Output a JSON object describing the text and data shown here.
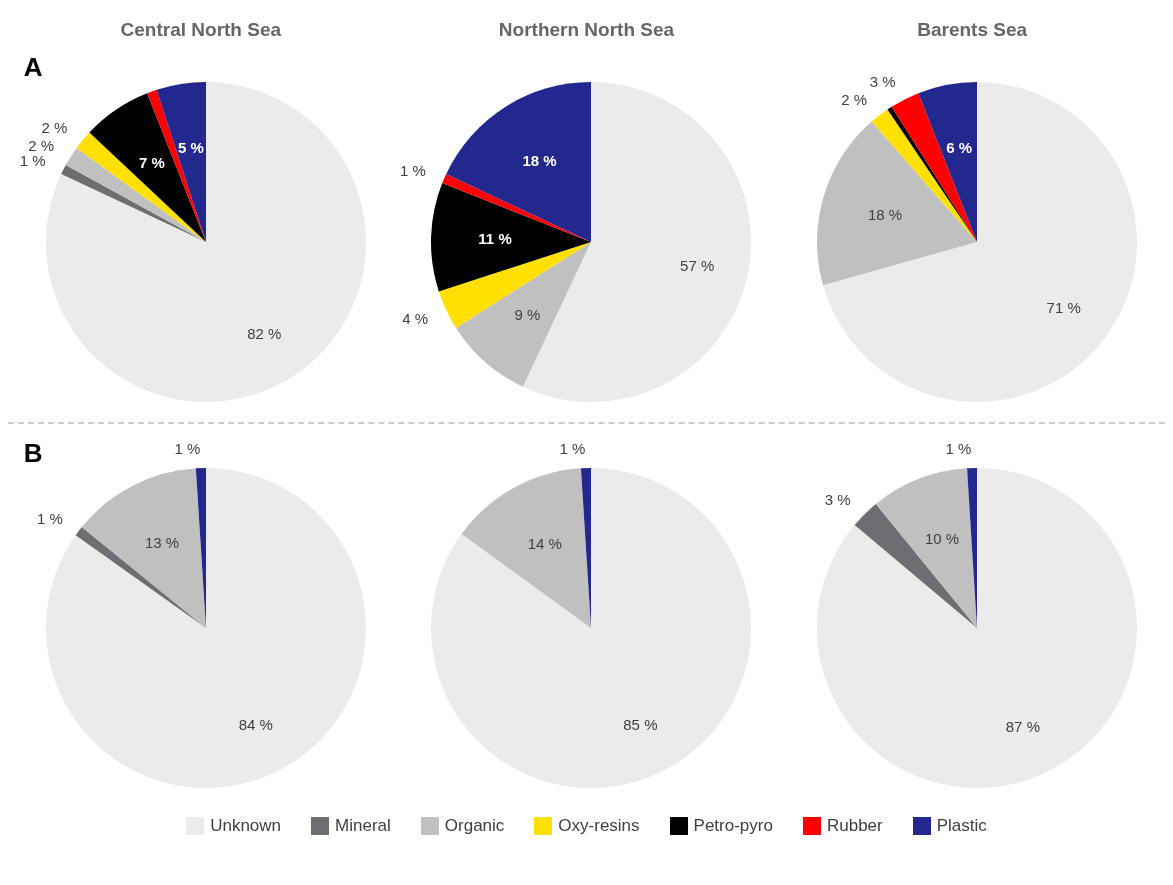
{
  "chart_data": [
    {
      "type": "pie",
      "title": "Central North Sea",
      "annotations": [
        "A"
      ],
      "legend": "bottom",
      "categories": [
        "Unknown",
        "Mineral",
        "Organic",
        "Oxy-resins",
        "Petro-pyro",
        "Rubber",
        "Plastic"
      ],
      "values": [
        82,
        1,
        2,
        2,
        7,
        1,
        5
      ],
      "colors": [
        "#ebebeb",
        "#6d6e71",
        "#c0c0c0",
        "#ffe000",
        "#000000",
        "#ff0000",
        "#23288f"
      ],
      "value_labels": [
        "82 %",
        "1 %",
        "2 %",
        "2 %",
        "7 %",
        null,
        "5 %"
      ]
    },
    {
      "type": "pie",
      "title": "Northern North Sea",
      "categories": [
        null,
        null,
        null,
        null,
        null,
        null
      ],
      "values": [
        57,
        9,
        4,
        11,
        1,
        18
      ],
      "colors": [
        "#ebebeb",
        "#c0c0c0",
        "#ffe000",
        "#000000",
        "#ff0000",
        "#23288f"
      ],
      "value_labels": [
        "57 %",
        "9 %",
        "4 %",
        "11 %",
        "1 %",
        "18 %"
      ]
    },
    {
      "type": "pie",
      "title": "Barents Sea",
      "categories": [
        null,
        null,
        null,
        null,
        null,
        null
      ],
      "values": [
        71,
        18,
        2,
        0.5,
        3,
        6
      ],
      "colors": [
        "#ebebeb",
        "#c0c0c0",
        "#ffe000",
        "#000000",
        "#ff0000",
        "#23288f"
      ],
      "value_labels": [
        "71 %",
        "18 %",
        "2 %",
        null,
        "3 %",
        "6 %"
      ]
    },
    {
      "type": "pie",
      "annotations": [
        "B"
      ],
      "categories": [
        null,
        null,
        null,
        null
      ],
      "values": [
        84,
        1,
        13,
        1
      ],
      "colors": [
        "#ebebeb",
        "#6d6e71",
        "#c0c0c0",
        "#23288f"
      ],
      "value_labels": [
        "84 %",
        "1 %",
        "13 %",
        "1 %"
      ]
    },
    {
      "type": "pie",
      "categories": [
        null,
        null,
        null
      ],
      "values": [
        85,
        14,
        1
      ],
      "colors": [
        "#ebebeb",
        "#c0c0c0",
        "#23288f"
      ],
      "value_labels": [
        "85 %",
        "14 %",
        "1 %"
      ]
    },
    {
      "type": "pie",
      "categories": [
        null,
        null,
        null,
        null
      ],
      "values": [
        87,
        3,
        10,
        1
      ],
      "colors": [
        "#ebebeb",
        "#6d6e71",
        "#c0c0c0",
        "#23288f"
      ],
      "value_labels": [
        "87 %",
        "3 %",
        "10 %",
        "1 %"
      ]
    }
  ]
}
